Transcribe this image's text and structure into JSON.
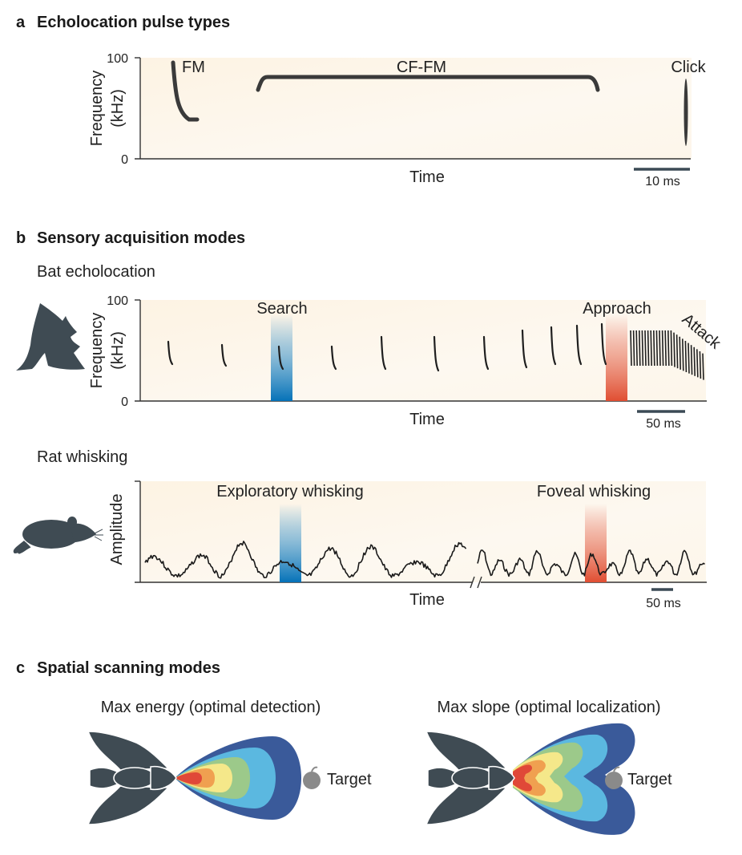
{
  "panel_a": {
    "letter": "a",
    "title": "Echolocation pulse types",
    "y_label_line1": "Frequency",
    "y_label_line2": "(kHz)",
    "y_max_label": "100",
    "y_min_label": "0",
    "x_label": "Time",
    "pulse_labels": [
      "FM",
      "CF-FM",
      "Click"
    ],
    "scale_bar_label": "10 ms"
  },
  "panel_b": {
    "letter": "b",
    "title": "Sensory acquisition modes",
    "bat": {
      "heading": "Bat echolocation",
      "y_label_line1": "Frequency",
      "y_label_line2": "(kHz)",
      "y_max_label": "100",
      "y_min_label": "0",
      "x_label": "Time",
      "phase_labels": [
        "Search",
        "Approach",
        "Attack"
      ],
      "scale_bar_label": "50 ms"
    },
    "rat": {
      "heading": "Rat whisking",
      "y_label": "Amplitude",
      "x_label": "Time",
      "phase_labels": [
        "Exploratory whisking",
        "Foveal whisking"
      ],
      "scale_bar_label": "50 ms"
    }
  },
  "panel_c": {
    "letter": "c",
    "title": "Spatial scanning modes",
    "left_title": "Max energy (optimal detection)",
    "right_title": "Max slope (optimal localization)",
    "target_label": "Target",
    "beam_colors": [
      "#3a5a9a",
      "#5bb8e0",
      "#9cc98a",
      "#f5e88a",
      "#f0a050",
      "#e04838"
    ]
  }
}
